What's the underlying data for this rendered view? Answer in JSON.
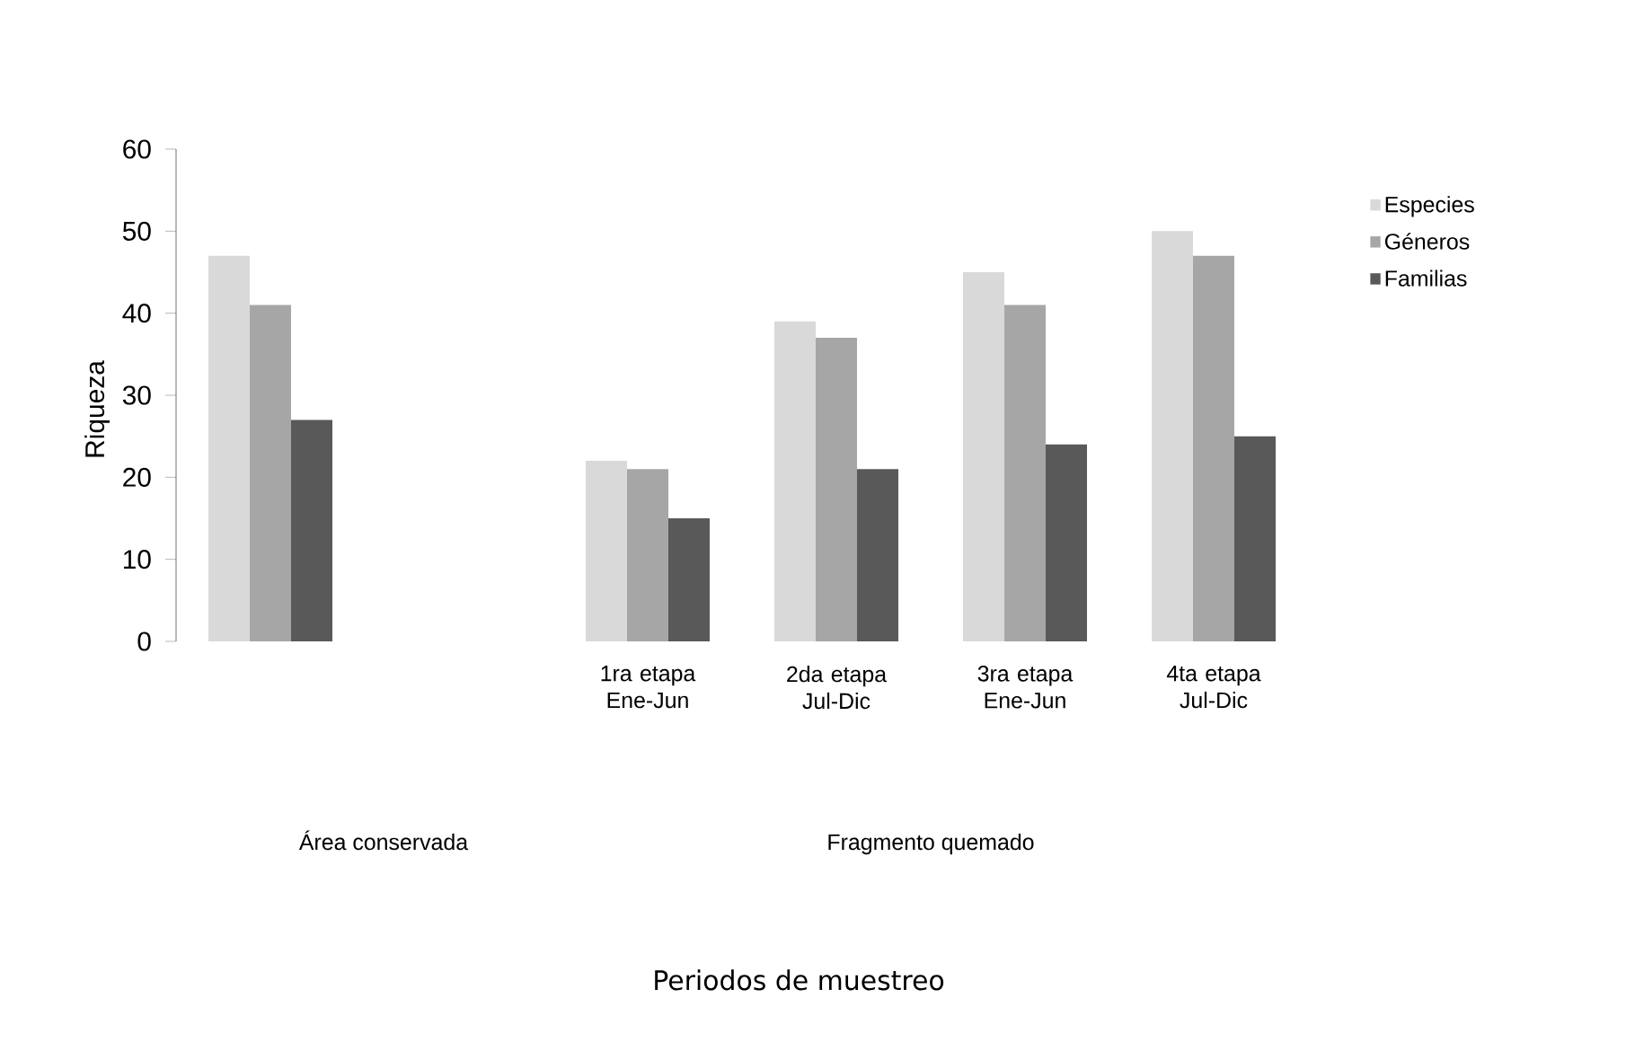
{
  "chart_data": {
    "type": "bar",
    "ylabel": "Riqueza",
    "categories": [
      null,
      null,
      "1ra etapa Ene-Jun",
      "2da etapa Jul-Dic",
      "3ra etapa Ene-Jun",
      "4ta etapa Jul-Dic"
    ],
    "series": [
      {
        "name": "Especies",
        "color": "#d9d9d9",
        "values": [
          47,
          null,
          22,
          39,
          45,
          50
        ]
      },
      {
        "name": "Géneros",
        "color": "#a6a6a6",
        "values": [
          41,
          null,
          21,
          37,
          41,
          47
        ]
      },
      {
        "name": "Familias",
        "color": "#595959",
        "values": [
          27,
          null,
          15,
          21,
          24,
          25
        ]
      }
    ],
    "annotations": [
      "Área conservada",
      "Fragmento quemado",
      "Periodos de muestreo"
    ],
    "ylim": [
      0,
      60
    ],
    "yticks": [
      0,
      10,
      20,
      30,
      40,
      50,
      60
    ],
    "legend": "right",
    "grid": false
  }
}
